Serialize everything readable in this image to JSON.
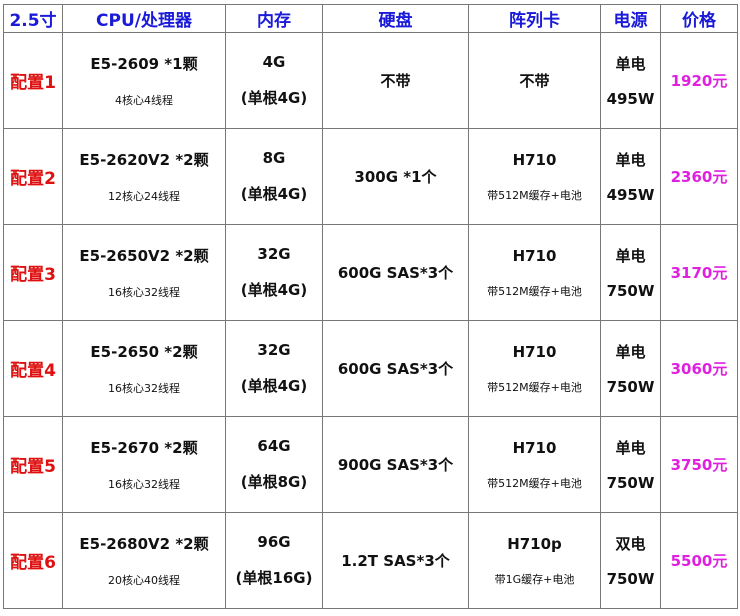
{
  "headers": [
    "2.5寸",
    "CPU/处理器",
    "内存",
    "硬盘",
    "阵列卡",
    "电源",
    "价格"
  ],
  "rows": [
    {
      "name": "配置1",
      "cpu": "E5-2609 *1颗",
      "cpu_sub": "4核心4线程",
      "mem": "4G",
      "mem_sub": "(单根4G)",
      "disk": "不带",
      "raid": "不带",
      "raid_sub": "",
      "psu": "单电",
      "psu_w": "495W",
      "price": "1920元"
    },
    {
      "name": "配置2",
      "cpu": "E5-2620V2 *2颗",
      "cpu_sub": "12核心24线程",
      "mem": "8G",
      "mem_sub": "(单根4G)",
      "disk": "300G *1个",
      "raid": "H710",
      "raid_sub": "带512M缓存+电池",
      "psu": "单电",
      "psu_w": "495W",
      "price": "2360元"
    },
    {
      "name": "配置3",
      "cpu": "E5-2650V2 *2颗",
      "cpu_sub": "16核心32线程",
      "mem": "32G",
      "mem_sub": "(单根4G)",
      "disk": "600G SAS*3个",
      "raid": "H710",
      "raid_sub": "带512M缓存+电池",
      "psu": "单电",
      "psu_w": "750W",
      "price": "3170元"
    },
    {
      "name": "配置4",
      "cpu": "E5-2650 *2颗",
      "cpu_sub": "16核心32线程",
      "mem": "32G",
      "mem_sub": "(单根4G)",
      "disk": "600G SAS*3个",
      "raid": "H710",
      "raid_sub": "带512M缓存+电池",
      "psu": "单电",
      "psu_w": "750W",
      "price": "3060元"
    },
    {
      "name": "配置5",
      "cpu": "E5-2670 *2颗",
      "cpu_sub": "16核心32线程",
      "mem": "64G",
      "mem_sub": "(单根8G)",
      "disk": "900G SAS*3个",
      "raid": "H710",
      "raid_sub": "带512M缓存+电池",
      "psu": "单电",
      "psu_w": "750W",
      "price": "3750元"
    },
    {
      "name": "配置6",
      "cpu": "E5-2680V2 *2颗",
      "cpu_sub": "20核心40线程",
      "mem": "96G",
      "mem_sub": "(单根16G)",
      "disk": "1.2T SAS*3个",
      "raid": "H710p",
      "raid_sub": "带1G缓存+电池",
      "psu": "双电",
      "psu_w": "750W",
      "price": "5500元"
    }
  ],
  "colors": {
    "header": "#1a1ad8",
    "config": "#e01010",
    "price": "#e020e0"
  }
}
